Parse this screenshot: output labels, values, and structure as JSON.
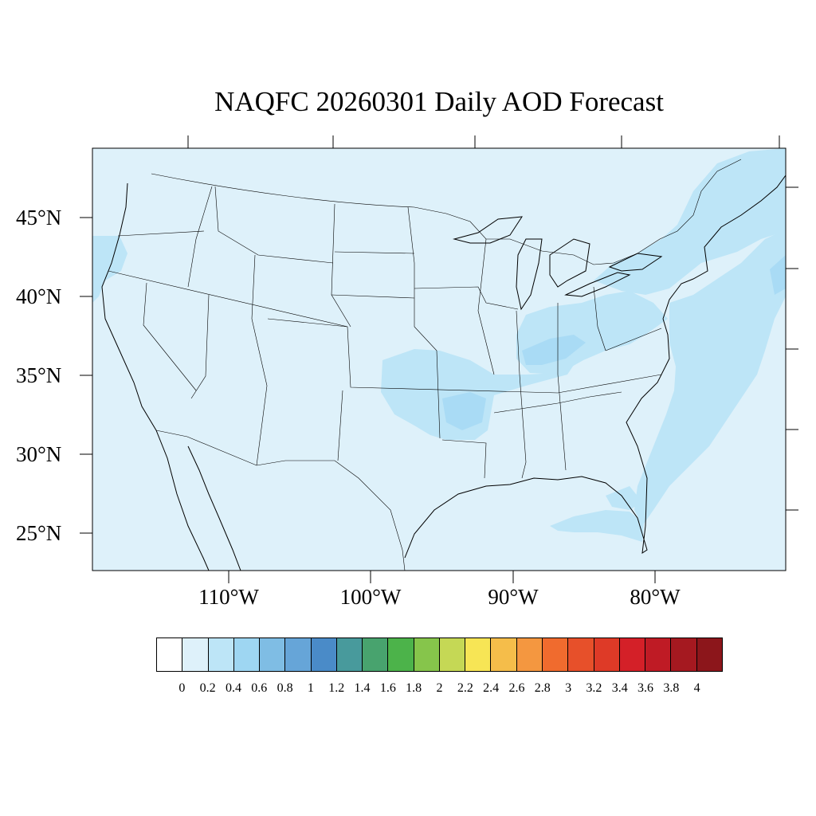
{
  "title": "NAQFC 20260301 Daily AOD Forecast",
  "map": {
    "lat_labels": [
      "45°N",
      "40°N",
      "35°N",
      "30°N",
      "25°N"
    ],
    "lon_labels": [
      "110°W",
      "100°W",
      "90°W",
      "80°W"
    ],
    "background_color": "#def1fa",
    "aod_high_color": "#bde5f7",
    "aod_higher_color": "#a9dbf5"
  },
  "colorbar": {
    "labels": [
      "0",
      "0.2",
      "0.4",
      "0.6",
      "0.8",
      "1",
      "1.2",
      "1.4",
      "1.6",
      "1.8",
      "2",
      "2.2",
      "2.4",
      "2.6",
      "2.8",
      "3",
      "3.2",
      "3.4",
      "3.6",
      "3.8",
      "4"
    ],
    "colors": [
      "#ffffff",
      "#def1fa",
      "#bde5f7",
      "#9ed6f2",
      "#7fbde4",
      "#66a5d8",
      "#4a8bc8",
      "#489a9c",
      "#48a36e",
      "#4cb34a",
      "#86c54b",
      "#c5d855",
      "#f7e555",
      "#f5bd4a",
      "#f49740",
      "#f06b2e",
      "#e7502a",
      "#de3a27",
      "#d42028",
      "#bf1b25",
      "#a51920",
      "#8c161b"
    ]
  }
}
